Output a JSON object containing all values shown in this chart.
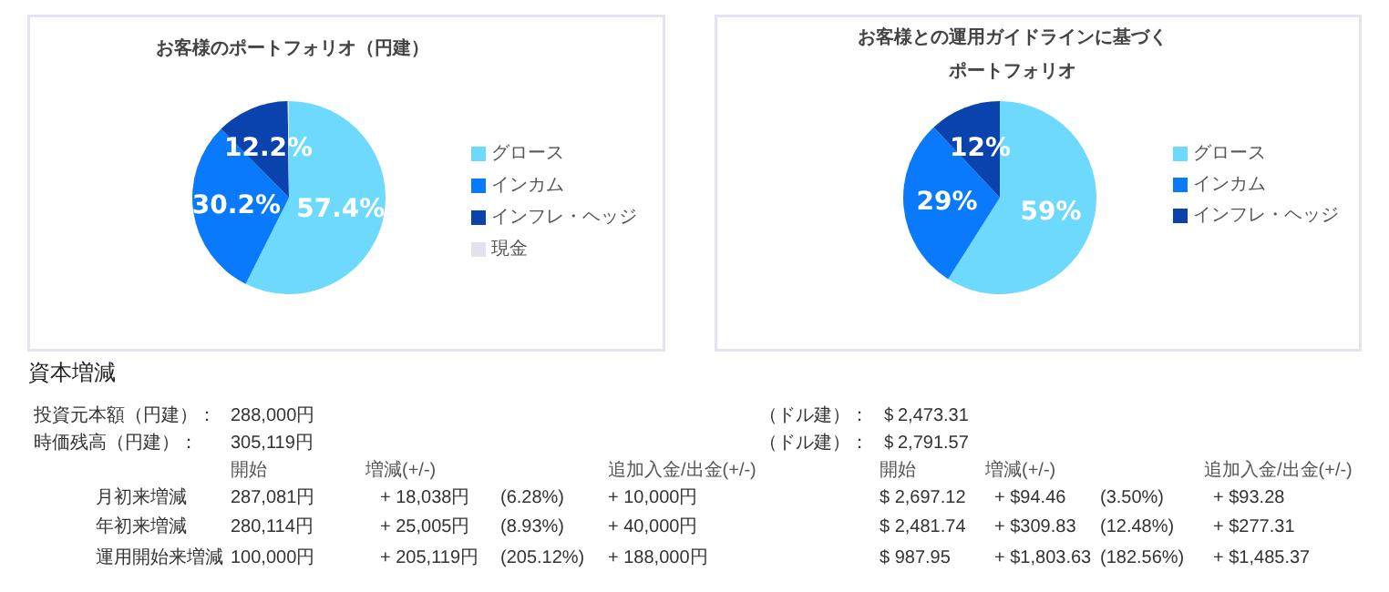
{
  "chart_data": [
    {
      "type": "pie",
      "title": "お客様のポートフォリオ（円建）",
      "categories": [
        "グロース",
        "インカム",
        "インフレ・ヘッジ",
        "現金"
      ],
      "values": [
        57.4,
        30.2,
        12.2,
        0.2
      ],
      "colors": [
        "#6dd9fd",
        "#0a7afc",
        "#0b43ae",
        "#e2e2ec"
      ],
      "value_labels": [
        "57.4%",
        "30.2%",
        "12.2%",
        null
      ],
      "legend": "right"
    },
    {
      "type": "pie",
      "title": "お客様との運用ガイドラインに基づくポートフォリオ",
      "categories": [
        "グロース",
        "インカム",
        "インフレ・ヘッジ"
      ],
      "values": [
        59,
        29,
        12
      ],
      "colors": [
        "#6dd9fd",
        "#0a7afc",
        "#0b43ae"
      ],
      "value_labels": [
        "59%",
        "29%",
        "12%"
      ],
      "legend": "right"
    },
    {
      "type": "other",
      "title": "資本増減",
      "annotations": [
        "投資元本額（円建）：",
        "288,000円",
        "（ドル建）：",
        "＄2,473.31",
        "時価残高（円建）：",
        "305,119円",
        "（ドル建）：",
        "＄2,791.57",
        "開始",
        "増減(+/-)",
        "追加入金/出金(+/-)",
        "開始",
        "増減(+/-)",
        "追加入金/出金(+/-)",
        "月初来増減",
        "287,081円",
        "+ 18,038円",
        "(6.28%)",
        "+ 10,000円",
        "$ 2,697.12",
        "+ $94.46",
        "(3.50%)",
        "+ $93.28",
        "年初来増減",
        "280,114円",
        "+ 25,005円",
        "(8.93%)",
        "+ 40,000円",
        "$ 2,481.74",
        "+ $309.83",
        "(12.48%)",
        "+ $277.31",
        "運用開始来増減",
        "100,000円",
        "+ 205,119円",
        "(205.12%)",
        "+ 188,000円",
        "$ 987.95",
        "+ $1,803.63",
        "(182.56%)",
        "+ $1,485.37"
      ]
    }
  ]
}
